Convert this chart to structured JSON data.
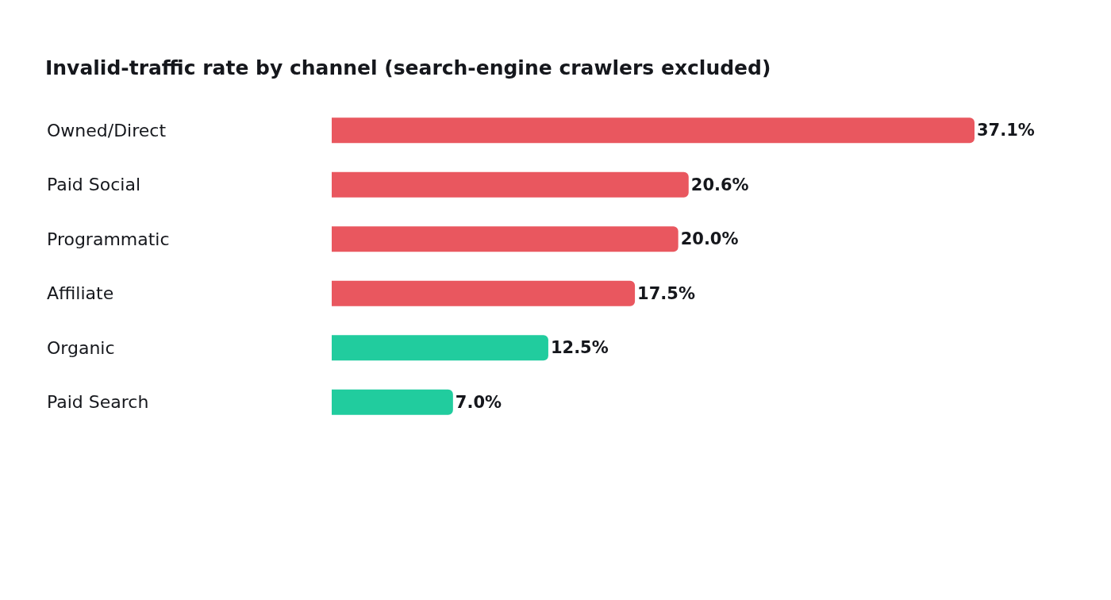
{
  "chart_data": {
    "type": "bar",
    "orientation": "horizontal",
    "title": "Invalid-traffic rate by channel (search-engine crawlers excluded)",
    "categories": [
      "Owned/Direct",
      "Paid Social",
      "Programmatic",
      "Affiliate",
      "Organic",
      "Paid Search"
    ],
    "values": [
      37.1,
      20.6,
      20.0,
      17.5,
      12.5,
      7.0
    ],
    "value_labels": [
      "37.1%",
      "20.6%",
      "20.0%",
      "17.5%",
      "12.5%",
      "7.0%"
    ],
    "colors": [
      "#e9575f",
      "#e9575f",
      "#e9575f",
      "#e9575f",
      "#21cc9e",
      "#21cc9e"
    ]
  }
}
